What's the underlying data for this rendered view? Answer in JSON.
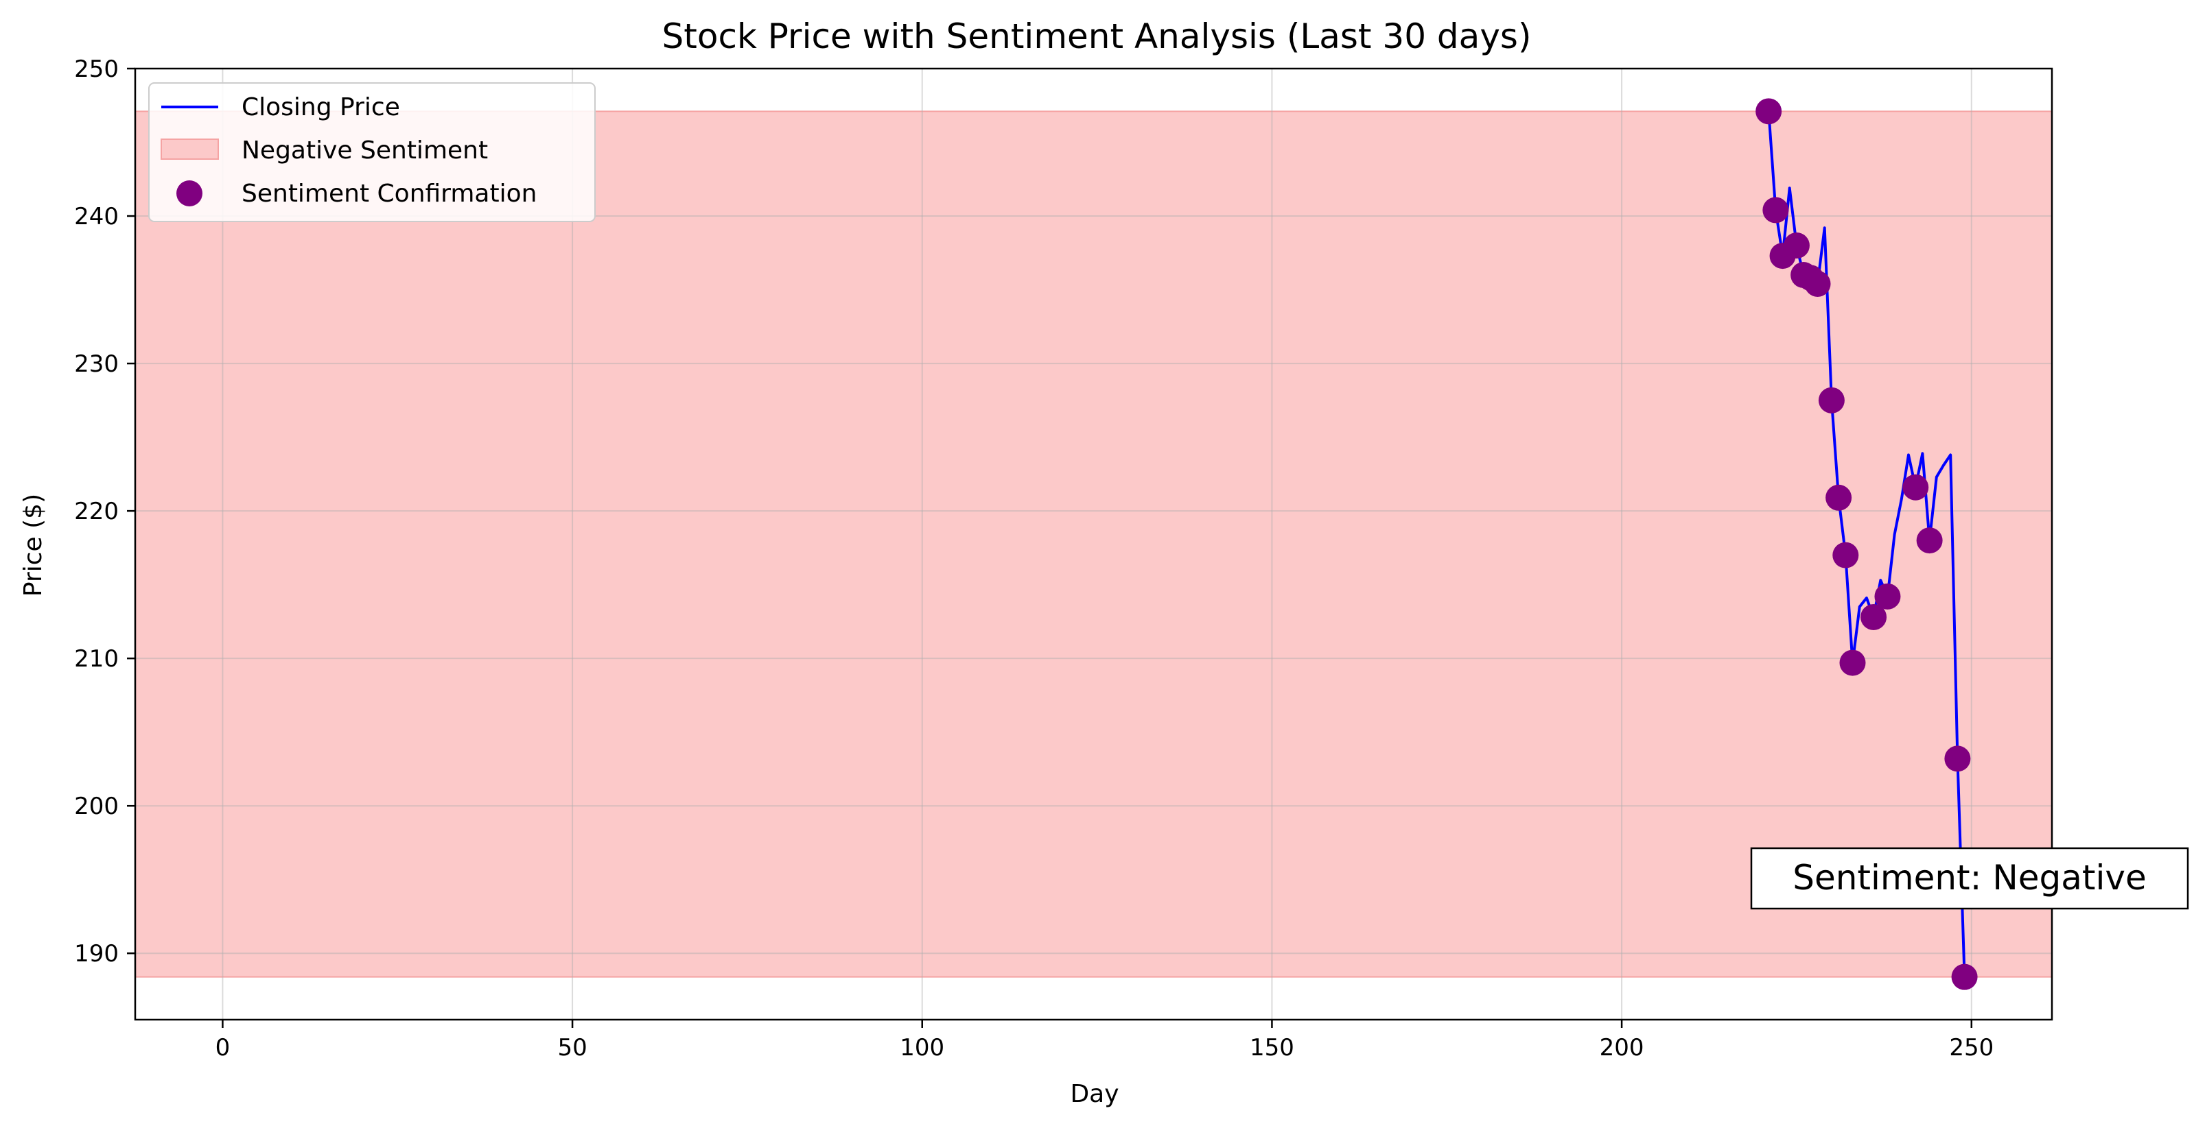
{
  "colors": {
    "line": "#0000ff",
    "band_fill": "#fcc9c9",
    "band_edge": "#f5a3a3",
    "marker": "#800080",
    "grid": "#d9d9d9"
  },
  "chart_data": {
    "type": "line",
    "title": "Stock Price with Sentiment Analysis (Last 30 days)",
    "xlabel": "Day",
    "ylabel": "Price ($)",
    "xlim": [
      -12.5,
      261.5
    ],
    "ylim": [
      185.5,
      250
    ],
    "x_ticks": [
      0,
      50,
      100,
      150,
      200,
      250
    ],
    "y_ticks": [
      190,
      200,
      210,
      220,
      230,
      240,
      250
    ],
    "x_tick_labels": [
      "0",
      "50",
      "100",
      "150",
      "200",
      "250"
    ],
    "y_tick_labels": [
      "190",
      "200",
      "210",
      "220",
      "230",
      "240",
      "250"
    ],
    "grid": true,
    "legend_position": "top-left",
    "series": [
      {
        "name": "Closing Price",
        "kind": "line",
        "x": [
          221,
          222,
          223,
          224,
          225,
          226,
          227,
          228,
          229,
          230,
          231,
          232,
          233,
          234,
          235,
          236,
          237,
          238,
          239,
          240,
          241,
          242,
          243,
          244,
          245,
          246,
          247,
          248,
          249
        ],
        "y": [
          247.1,
          240.4,
          237.3,
          241.9,
          238.0,
          236.0,
          235.8,
          235.4,
          239.2,
          227.5,
          220.9,
          217.0,
          209.7,
          213.5,
          214.1,
          212.8,
          215.3,
          214.2,
          218.4,
          220.8,
          223.8,
          221.6,
          223.9,
          218.0,
          222.3,
          223.1,
          223.8,
          203.2,
          188.4
        ]
      },
      {
        "name": "Negative Sentiment",
        "kind": "band",
        "y_min": 188.4,
        "y_max": 247.1
      },
      {
        "name": "Sentiment Confirmation",
        "kind": "scatter",
        "x": [
          221,
          222,
          223,
          225,
          226,
          227,
          228,
          230,
          231,
          232,
          233,
          236,
          238,
          242,
          244,
          248,
          249
        ],
        "y": [
          247.1,
          240.4,
          237.3,
          238.0,
          236.0,
          235.8,
          235.4,
          227.5,
          220.9,
          217.0,
          209.7,
          212.8,
          214.2,
          221.6,
          218.0,
          203.2,
          188.4
        ]
      }
    ],
    "annotation": {
      "text": "Sentiment: Negative",
      "x": 234,
      "y": 195.2
    }
  }
}
